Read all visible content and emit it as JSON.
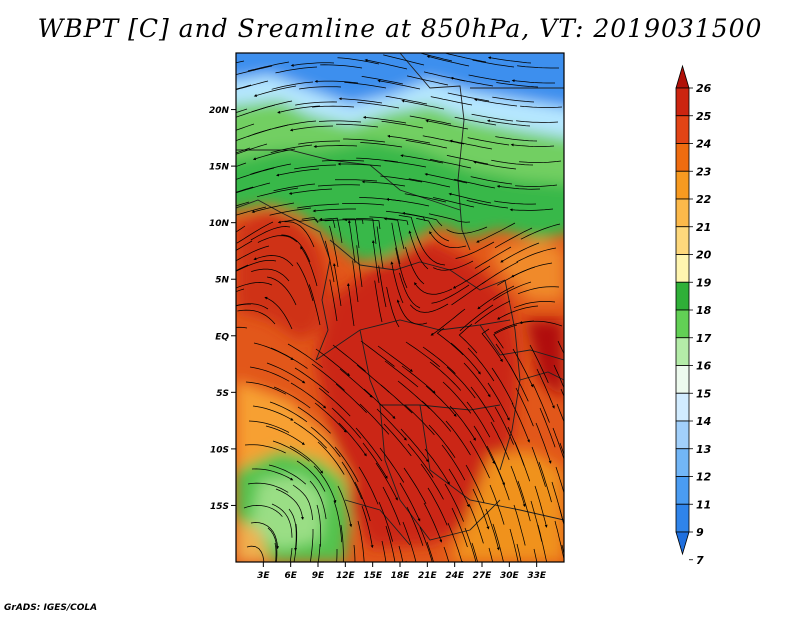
{
  "title": "WBPT [C] and Sreamline at 850hPa, VT: 2019031500",
  "credit": "GrADS: IGES/COLA",
  "map": {
    "lon_range": [
      0,
      36
    ],
    "lat_range": [
      -20,
      25
    ],
    "lat_ticks": [
      {
        "value": 20,
        "label": "20N"
      },
      {
        "value": 15,
        "label": "15N"
      },
      {
        "value": 10,
        "label": "10N"
      },
      {
        "value": 5,
        "label": "5N"
      },
      {
        "value": 0,
        "label": "EQ"
      },
      {
        "value": -5,
        "label": "5S"
      },
      {
        "value": -10,
        "label": "10S"
      },
      {
        "value": -15,
        "label": "15S"
      }
    ],
    "lon_ticks": [
      {
        "value": 3,
        "label": "3E"
      },
      {
        "value": 6,
        "label": "6E"
      },
      {
        "value": 9,
        "label": "9E"
      },
      {
        "value": 12,
        "label": "12E"
      },
      {
        "value": 15,
        "label": "15E"
      },
      {
        "value": 18,
        "label": "18E"
      },
      {
        "value": 21,
        "label": "21E"
      },
      {
        "value": 24,
        "label": "24E"
      },
      {
        "value": 27,
        "label": "27E"
      },
      {
        "value": 30,
        "label": "30E"
      },
      {
        "value": 33,
        "label": "33E"
      }
    ]
  },
  "colorbar": {
    "levels": [
      {
        "label": "7",
        "color": "#1f6fde"
      },
      {
        "label": "9",
        "color": "#2f84ea"
      },
      {
        "label": "11",
        "color": "#4a9cf2"
      },
      {
        "label": "12",
        "color": "#72b6f7"
      },
      {
        "label": "13",
        "color": "#a2d0fb"
      },
      {
        "label": "14",
        "color": "#d2ecff"
      },
      {
        "label": "15",
        "color": "#edfaee"
      },
      {
        "label": "16",
        "color": "#b4eca8"
      },
      {
        "label": "17",
        "color": "#62d055"
      },
      {
        "label": "18",
        "color": "#2fb038"
      },
      {
        "label": "19",
        "color": "#fff5b0"
      },
      {
        "label": "20",
        "color": "#fed87c"
      },
      {
        "label": "21",
        "color": "#fcb94a"
      },
      {
        "label": "22",
        "color": "#f79a20"
      },
      {
        "label": "23",
        "color": "#ef6c10"
      },
      {
        "label": "24",
        "color": "#e24416"
      },
      {
        "label": "25",
        "color": "#cc2410"
      },
      {
        "label": "26",
        "color": "#b01008"
      }
    ]
  }
}
